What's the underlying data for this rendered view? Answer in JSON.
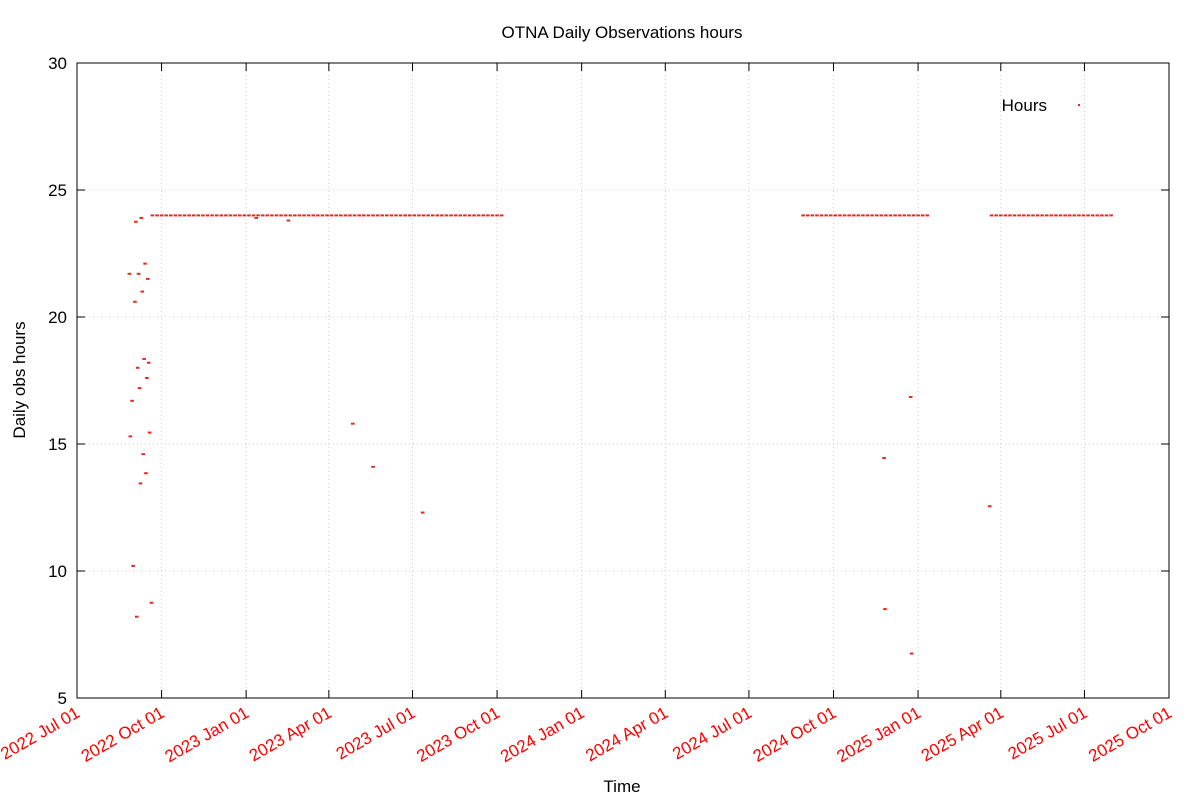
{
  "chart_data": {
    "type": "scatter",
    "title": "OTNA Daily Observations hours",
    "x_label": "Time",
    "y_label": "Daily obs hours",
    "series": [
      {
        "name": "Hours",
        "color": "#e8281e",
        "x": [
          "2022-08-27",
          "2022-08-28",
          "2022-08-30",
          "2022-08-31",
          "2022-09-02",
          "2022-09-03",
          "2022-09-04",
          "2022-09-05",
          "2022-09-06",
          "2022-09-07",
          "2022-09-08",
          "2022-09-09",
          "2022-09-10",
          "2022-09-11",
          "2022-09-12",
          "2022-09-13",
          "2022-09-14",
          "2022-09-15",
          "2022-09-16",
          "2022-09-17",
          "2022-09-18",
          "2022-09-20",
          "2023-01-12",
          "2023-02-16",
          "2023-04-27",
          "2023-05-19",
          "2023-07-12",
          "2024-11-25",
          "2024-11-26",
          "2024-12-24",
          "2024-12-25",
          "2025-03-20",
          "2022-09-21",
          "2022-09-26",
          "2022-10-01",
          "2022-10-06",
          "2022-10-11",
          "2022-10-16",
          "2022-10-21",
          "2022-10-26",
          "2022-10-31",
          "2022-11-05",
          "2022-11-10",
          "2022-11-15",
          "2022-11-20",
          "2022-11-25",
          "2022-11-30",
          "2022-12-05",
          "2022-12-10",
          "2022-12-15",
          "2022-12-20",
          "2022-12-25",
          "2022-12-30",
          "2023-01-04",
          "2023-01-09",
          "2023-01-14",
          "2023-01-19",
          "2023-01-24",
          "2023-01-29",
          "2023-02-03",
          "2023-02-08",
          "2023-02-13",
          "2023-02-18",
          "2023-02-23",
          "2023-02-28",
          "2023-03-05",
          "2023-03-10",
          "2023-03-15",
          "2023-03-20",
          "2023-03-25",
          "2023-03-30",
          "2023-04-04",
          "2023-04-09",
          "2023-04-14",
          "2023-04-19",
          "2023-04-24",
          "2023-04-29",
          "2023-05-04",
          "2023-05-09",
          "2023-05-14",
          "2023-05-19",
          "2023-05-24",
          "2023-05-29",
          "2023-06-03",
          "2023-06-08",
          "2023-06-13",
          "2023-06-18",
          "2023-06-23",
          "2023-06-28",
          "2023-07-03",
          "2023-07-08",
          "2023-07-13",
          "2023-07-18",
          "2023-07-23",
          "2023-07-28",
          "2023-08-02",
          "2023-08-07",
          "2023-08-12",
          "2023-08-17",
          "2023-08-22",
          "2023-08-27",
          "2023-09-01",
          "2023-09-06",
          "2023-09-11",
          "2023-09-16",
          "2023-09-21",
          "2023-09-26",
          "2023-10-01",
          "2023-10-06",
          "2024-08-29",
          "2024-09-03",
          "2024-09-08",
          "2024-09-13",
          "2024-09-18",
          "2024-09-23",
          "2024-09-28",
          "2024-10-03",
          "2024-10-08",
          "2024-10-13",
          "2024-10-18",
          "2024-10-23",
          "2024-10-28",
          "2024-11-02",
          "2024-11-07",
          "2024-11-12",
          "2024-11-17",
          "2024-11-22",
          "2024-11-27",
          "2024-12-02",
          "2024-12-07",
          "2024-12-12",
          "2024-12-17",
          "2024-12-22",
          "2024-12-27",
          "2025-01-01",
          "2025-01-06",
          "2025-01-11",
          "2025-03-22",
          "2025-03-27",
          "2025-04-01",
          "2025-04-06",
          "2025-04-11",
          "2025-04-16",
          "2025-04-21",
          "2025-04-26",
          "2025-05-01",
          "2025-05-06",
          "2025-05-11",
          "2025-05-16",
          "2025-05-21",
          "2025-05-26",
          "2025-05-31",
          "2025-06-05",
          "2025-06-10",
          "2025-06-15",
          "2025-06-20",
          "2025-06-25",
          "2025-06-30",
          "2025-07-05",
          "2025-07-10",
          "2025-07-15",
          "2025-07-20",
          "2025-07-25",
          "2025-07-30"
        ],
        "values": [
          21.7,
          15.3,
          16.7,
          10.2,
          20.6,
          23.75,
          8.2,
          18.0,
          21.7,
          17.2,
          13.45,
          23.9,
          21.0,
          14.6,
          18.35,
          22.1,
          13.85,
          17.6,
          21.5,
          18.2,
          15.45,
          8.75,
          23.9,
          23.8,
          15.8,
          14.1,
          12.3,
          14.45,
          8.5,
          16.85,
          6.75,
          12.55,
          24,
          24,
          24,
          24,
          24,
          24,
          24,
          24,
          24,
          24,
          24,
          24,
          24,
          24,
          24,
          24,
          24,
          24,
          24,
          24,
          24,
          24,
          24,
          24,
          24,
          24,
          24,
          24,
          24,
          24,
          24,
          24,
          24,
          24,
          24,
          24,
          24,
          24,
          24,
          24,
          24,
          24,
          24,
          24,
          24,
          24,
          24,
          24,
          24,
          24,
          24,
          24,
          24,
          24,
          24,
          24,
          24,
          24,
          24,
          24,
          24,
          24,
          24,
          24,
          24,
          24,
          24,
          24,
          24,
          24,
          24,
          24,
          24,
          24,
          24,
          24,
          24,
          24,
          24,
          24,
          24,
          24,
          24,
          24,
          24,
          24,
          24,
          24,
          24,
          24,
          24,
          24,
          24,
          24,
          24,
          24,
          24,
          24,
          24,
          24,
          24,
          24,
          24,
          24,
          24,
          24,
          24,
          24,
          24,
          24,
          24,
          24,
          24,
          24,
          24,
          24,
          24,
          24,
          24,
          24,
          24,
          24,
          24,
          24,
          24,
          24,
          24,
          24,
          24,
          24,
          24,
          24
        ]
      }
    ],
    "xlim": [
      "2022-07-01",
      "2025-10-01"
    ],
    "xticks": [
      {
        "value": "2022-07-01",
        "label": "2022 Jul 01"
      },
      {
        "value": "2022-10-01",
        "label": "2022 Oct 01"
      },
      {
        "value": "2023-01-01",
        "label": "2023 Jan 01"
      },
      {
        "value": "2023-04-01",
        "label": "2023 Apr 01"
      },
      {
        "value": "2023-07-01",
        "label": "2023 Jul 01"
      },
      {
        "value": "2023-10-01",
        "label": "2023 Oct 01"
      },
      {
        "value": "2024-01-01",
        "label": "2024 Jan 01"
      },
      {
        "value": "2024-04-01",
        "label": "2024 Apr 01"
      },
      {
        "value": "2024-07-01",
        "label": "2024 Jul 01"
      },
      {
        "value": "2024-10-01",
        "label": "2024 Oct 01"
      },
      {
        "value": "2025-01-01",
        "label": "2025 Jan 01"
      },
      {
        "value": "2025-04-01",
        "label": "2025 Apr 01"
      },
      {
        "value": "2025-07-01",
        "label": "2025 Jul 01"
      },
      {
        "value": "2025-10-01",
        "label": "2025 Oct 01"
      }
    ],
    "xtick_color": "#ff0000",
    "ylim": [
      5,
      30
    ],
    "yticks": [
      5,
      10,
      15,
      20,
      25,
      30
    ],
    "grid": true,
    "legend": "top-right"
  }
}
